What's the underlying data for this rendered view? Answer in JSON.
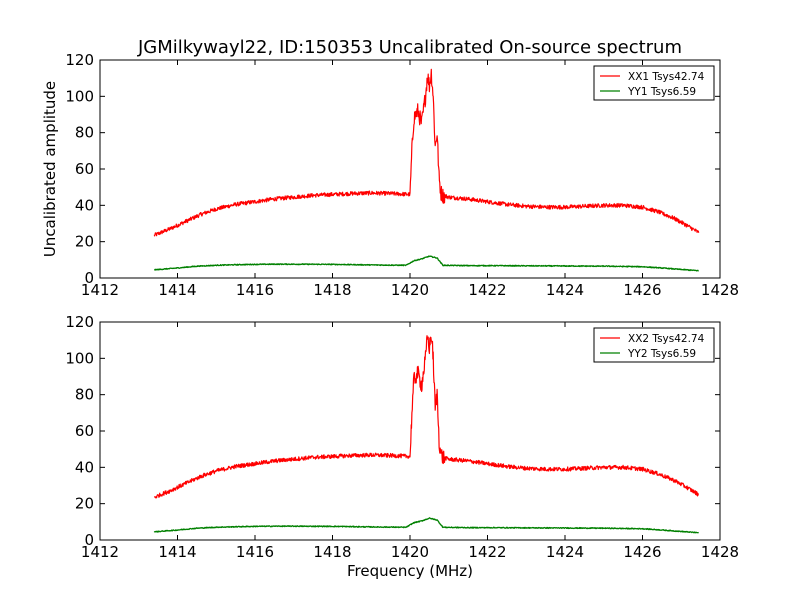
{
  "chart_data": [
    {
      "type": "line",
      "title": "JGMilkywayl22, ID:150353 Uncalibrated On-source spectrum",
      "xlabel": "",
      "ylabel": "Uncalibrated amplitude",
      "xlim": [
        1412,
        1428
      ],
      "ylim": [
        0,
        120
      ],
      "xticks": [
        1412,
        1414,
        1416,
        1418,
        1420,
        1422,
        1424,
        1426,
        1428
      ],
      "yticks": [
        0,
        20,
        40,
        60,
        80,
        100,
        120
      ],
      "legend_position": "top-right",
      "series": [
        {
          "name": "XX1 Tsys42.74",
          "color": "#ff0000",
          "x": [
            1413.4,
            1413.8,
            1414.2,
            1414.6,
            1415.0,
            1415.5,
            1416.0,
            1416.5,
            1417.0,
            1417.5,
            1418.0,
            1418.5,
            1419.0,
            1419.5,
            1420.0,
            1420.05,
            1420.1,
            1420.2,
            1420.3,
            1420.4,
            1420.45,
            1420.5,
            1420.55,
            1420.6,
            1420.65,
            1420.7,
            1420.75,
            1420.8,
            1420.85,
            1421.0,
            1421.5,
            1422.0,
            1422.5,
            1423.0,
            1423.5,
            1424.0,
            1424.5,
            1425.0,
            1425.5,
            1426.0,
            1426.4,
            1426.8,
            1427.1,
            1427.45
          ],
          "y": [
            23.5,
            27,
            31,
            35,
            38,
            40.5,
            42,
            43.5,
            44.5,
            45.5,
            46,
            46.5,
            46.8,
            46.5,
            46,
            70,
            88,
            92,
            85,
            100,
            112,
            106,
            113,
            100,
            72,
            80,
            55,
            47,
            45.5,
            44.5,
            43.5,
            42,
            40.5,
            39.5,
            39,
            39,
            39.5,
            40,
            40,
            39,
            36.5,
            33,
            29.5,
            25
          ]
        },
        {
          "name": "YY1 Tsys6.59",
          "color": "#008000",
          "x": [
            1413.4,
            1414.0,
            1414.5,
            1415.0,
            1415.5,
            1416.0,
            1416.5,
            1417.0,
            1418.0,
            1419.0,
            1419.9,
            1420.1,
            1420.3,
            1420.5,
            1420.7,
            1420.85,
            1421.5,
            1422.0,
            1423.0,
            1424.0,
            1425.0,
            1426.0,
            1426.5,
            1427.0,
            1427.45
          ],
          "y": [
            4.5,
            5.5,
            6.5,
            7.0,
            7.3,
            7.5,
            7.6,
            7.6,
            7.5,
            7.2,
            7.0,
            9.5,
            10.5,
            12.0,
            11.0,
            7.0,
            6.8,
            6.8,
            6.7,
            6.6,
            6.5,
            6.2,
            5.5,
            4.7,
            4.0
          ]
        }
      ]
    },
    {
      "type": "line",
      "title": "",
      "xlabel": "Frequency (MHz)",
      "ylabel": "",
      "xlim": [
        1412,
        1428
      ],
      "ylim": [
        0,
        120
      ],
      "xticks": [
        1412,
        1414,
        1416,
        1418,
        1420,
        1422,
        1424,
        1426,
        1428
      ],
      "yticks": [
        0,
        20,
        40,
        60,
        80,
        100,
        120
      ],
      "legend_position": "top-right",
      "series": [
        {
          "name": "XX2 Tsys42.74",
          "color": "#ff0000",
          "x": [
            1413.4,
            1413.8,
            1414.2,
            1414.6,
            1415.0,
            1415.5,
            1416.0,
            1416.5,
            1417.0,
            1417.5,
            1418.0,
            1418.5,
            1419.0,
            1419.5,
            1420.0,
            1420.05,
            1420.1,
            1420.2,
            1420.3,
            1420.4,
            1420.45,
            1420.5,
            1420.55,
            1420.6,
            1420.65,
            1420.7,
            1420.75,
            1420.8,
            1420.85,
            1421.0,
            1421.5,
            1422.0,
            1422.5,
            1423.0,
            1423.5,
            1424.0,
            1424.5,
            1425.0,
            1425.5,
            1426.0,
            1426.4,
            1426.8,
            1427.1,
            1427.45
          ],
          "y": [
            23.5,
            27,
            31,
            35,
            38,
            40.5,
            42,
            43.5,
            44.5,
            45.5,
            46,
            46.5,
            46.8,
            46.5,
            46,
            70,
            88,
            92,
            85,
            100,
            112,
            106,
            113,
            100,
            72,
            80,
            55,
            47,
            45.5,
            44.5,
            43.5,
            42,
            40.5,
            39.5,
            39,
            39,
            39.5,
            40,
            40,
            39,
            36.5,
            33,
            29.5,
            25
          ]
        },
        {
          "name": "YY2 Tsys6.59",
          "color": "#008000",
          "x": [
            1413.4,
            1414.0,
            1414.5,
            1415.0,
            1415.5,
            1416.0,
            1416.5,
            1417.0,
            1418.0,
            1419.0,
            1419.9,
            1420.1,
            1420.3,
            1420.5,
            1420.7,
            1420.85,
            1421.5,
            1422.0,
            1423.0,
            1424.0,
            1425.0,
            1426.0,
            1426.5,
            1427.0,
            1427.45
          ],
          "y": [
            4.5,
            5.5,
            6.5,
            7.0,
            7.3,
            7.5,
            7.6,
            7.6,
            7.5,
            7.2,
            7.0,
            9.5,
            10.5,
            12.0,
            11.0,
            7.0,
            6.8,
            6.8,
            6.7,
            6.6,
            6.5,
            6.2,
            5.5,
            4.7,
            4.0
          ]
        }
      ]
    }
  ]
}
